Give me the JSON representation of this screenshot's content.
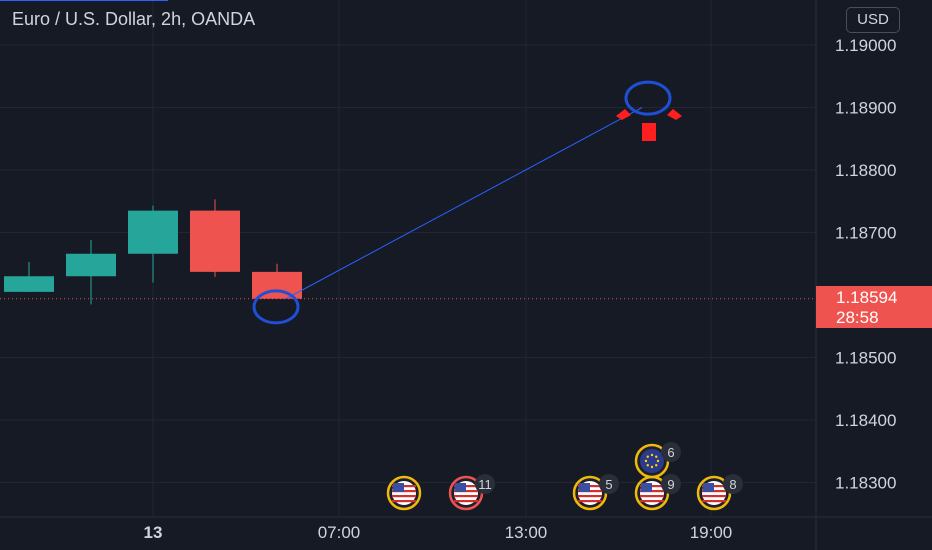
{
  "header": {
    "title": "Euro / U.S. Dollar, 2h, OANDA",
    "currency": "USD"
  },
  "price_tag": {
    "price": "1.18594",
    "countdown": "28:58"
  },
  "colors": {
    "background": "#161a25",
    "up": "#26a69a",
    "down": "#ef5350",
    "line": "#2962ff",
    "circle": "#1e4fd6",
    "grid": "#232632",
    "axis_text": "#d1d4dc",
    "event_ring": "#f0b90b",
    "event_ring_red": "#ef5350"
  },
  "chart_data": {
    "type": "candlestick",
    "title": "Euro / U.S. Dollar, 2h, OANDA",
    "y_ticks": [
      "1.19000",
      "1.18900",
      "1.18800",
      "1.18700",
      "1.18500",
      "1.18400",
      "1.18300"
    ],
    "x_ticks": [
      "13",
      "07:00",
      "13:00",
      "19:00"
    ],
    "current_price": 1.18594,
    "candles": [
      {
        "open": 1.18605,
        "high": 1.18653,
        "low": 1.18605,
        "close": 1.1863
      },
      {
        "open": 1.1863,
        "high": 1.18688,
        "low": 1.18585,
        "close": 1.18666
      },
      {
        "open": 1.18666,
        "high": 1.18743,
        "low": 1.1862,
        "close": 1.18735
      },
      {
        "open": 1.18735,
        "high": 1.18753,
        "low": 1.18629,
        "close": 1.18637
      },
      {
        "open": 1.18637,
        "high": 1.1865,
        "low": 1.18594,
        "close": 1.18594
      }
    ],
    "annotations": {
      "line": {
        "from": {
          "candle": 4,
          "price": 1.18594
        },
        "to": {
          "candle": 10,
          "price": 1.189
        }
      },
      "circles": [
        {
          "candle": 4,
          "price": 1.18581
        },
        {
          "candle": 10,
          "price": 1.18915
        }
      ],
      "arrow": {
        "candle": 10,
        "price": 1.1888,
        "direction": "down"
      }
    },
    "events": [
      {
        "candle": 6,
        "icon": "us-flag-icon",
        "ring": "gold",
        "count": ""
      },
      {
        "candle": 7,
        "icon": "us-flag-icon",
        "ring": "red",
        "count": "11"
      },
      {
        "candle": 9,
        "icon": "us-flag-icon",
        "ring": "gold",
        "count": "5"
      },
      {
        "candle": 10,
        "icon": "us-flag-icon",
        "ring": "gold",
        "count": "9"
      },
      {
        "candle": 10,
        "icon": "eu-flag-icon",
        "ring": "gold",
        "count": "6",
        "row": 2
      },
      {
        "candle": 11,
        "icon": "us-flag-icon",
        "ring": "gold",
        "count": "8"
      }
    ]
  }
}
